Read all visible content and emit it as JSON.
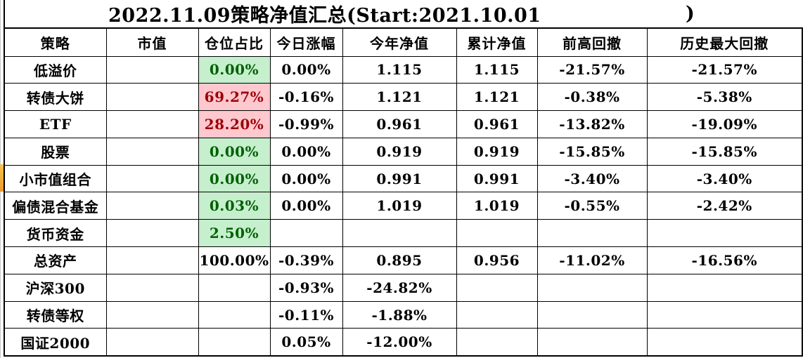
{
  "title": {
    "text": "2022.11.09策略净值汇总(Start:2021.10.01",
    "closing_paren": ")"
  },
  "colors": {
    "good_bg": "#C6EFCE",
    "good_text": "#006100",
    "bad_bg": "#FFC7CE",
    "bad_text": "#9C0006",
    "grid_border": "#000000",
    "row_marker": "#F2A93B"
  },
  "table": {
    "headers": [
      "策略",
      "市值",
      "仓位占比",
      "今日涨幅",
      "今年净值",
      "累计净值",
      "前高回撤",
      "历史最大回撤"
    ],
    "rows": [
      {
        "cells": [
          "低溢价",
          "",
          "0.00%",
          "0.00%",
          "1.115",
          "1.115",
          "-21.57%",
          "-21.57%"
        ],
        "position_style": "good"
      },
      {
        "cells": [
          "转债大饼",
          "",
          "69.27%",
          "-0.16%",
          "1.121",
          "1.121",
          "-0.38%",
          "-5.38%"
        ],
        "position_style": "bad"
      },
      {
        "cells": [
          "ETF",
          "",
          "28.20%",
          "-0.99%",
          "0.961",
          "0.961",
          "-13.82%",
          "-19.09%"
        ],
        "position_style": "bad"
      },
      {
        "cells": [
          "股票",
          "",
          "0.00%",
          "0.00%",
          "0.919",
          "0.919",
          "-15.85%",
          "-15.85%"
        ],
        "position_style": "good"
      },
      {
        "cells": [
          "小市值组合",
          "",
          "0.00%",
          "0.00%",
          "0.991",
          "0.991",
          "-3.40%",
          "-3.40%"
        ],
        "position_style": "good"
      },
      {
        "cells": [
          "偏债混合基金",
          "",
          "0.03%",
          "0.00%",
          "1.019",
          "1.019",
          "-0.55%",
          "-2.42%"
        ],
        "position_style": "good"
      },
      {
        "cells": [
          "货币资金",
          "",
          "2.50%",
          "",
          "",
          "",
          "",
          ""
        ],
        "position_style": "good"
      },
      {
        "cells": [
          "总资产",
          "",
          "100.00%",
          "-0.39%",
          "0.895",
          "0.956",
          "-11.02%",
          "-16.56%"
        ],
        "position_style": "none"
      },
      {
        "cells": [
          "沪深300",
          "",
          "",
          "-0.93%",
          "-24.82%",
          "",
          "",
          ""
        ],
        "position_style": "none"
      },
      {
        "cells": [
          "转债等权",
          "",
          "",
          "-0.11%",
          "-1.88%",
          "",
          "",
          ""
        ],
        "position_style": "none"
      },
      {
        "cells": [
          "国证2000",
          "",
          "",
          "0.05%",
          "-12.00%",
          "",
          "",
          ""
        ],
        "position_style": "none"
      }
    ]
  }
}
